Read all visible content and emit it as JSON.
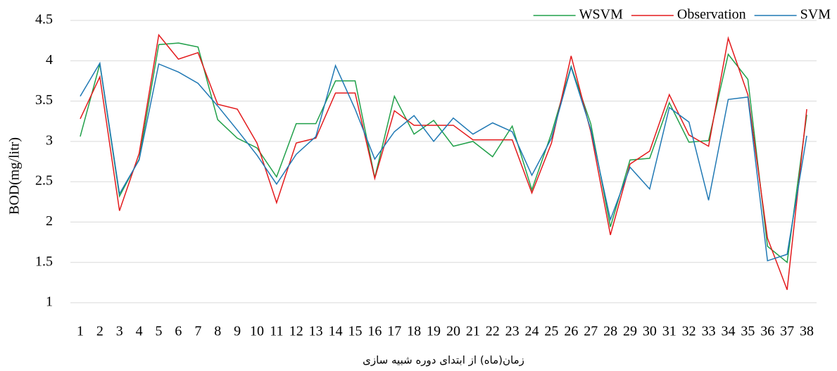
{
  "chart_data": {
    "type": "line",
    "y_label": "BOD(mg/litr)",
    "x_label": "زمان(ماه) از ابتدای دوره شبیه سازی",
    "categories": [
      "1",
      "2",
      "3",
      "4",
      "5",
      "6",
      "7",
      "8",
      "9",
      "10",
      "11",
      "12",
      "13",
      "14",
      "15",
      "16",
      "17",
      "18",
      "19",
      "20",
      "21",
      "22",
      "23",
      "24",
      "25",
      "26",
      "27",
      "28",
      "29",
      "30",
      "31",
      "32",
      "33",
      "34",
      "35",
      "36",
      "37",
      "38"
    ],
    "series": [
      {
        "name": "WSVM",
        "color": "#21a04a",
        "values": [
          3.06,
          3.96,
          2.32,
          2.78,
          4.2,
          4.22,
          4.17,
          3.27,
          3.04,
          2.92,
          2.56,
          3.22,
          3.22,
          3.75,
          3.75,
          2.55,
          3.56,
          3.09,
          3.26,
          2.94,
          3.0,
          2.81,
          3.19,
          2.4,
          3.1,
          3.93,
          3.22,
          1.94,
          2.77,
          2.79,
          3.48,
          2.99,
          3.01,
          4.08,
          3.77,
          1.7,
          1.5,
          3.33
        ]
      },
      {
        "name": "Observation",
        "color": "#e31a1c",
        "values": [
          3.28,
          3.8,
          2.14,
          2.85,
          4.32,
          4.02,
          4.1,
          3.46,
          3.4,
          2.98,
          2.24,
          2.98,
          3.04,
          3.6,
          3.6,
          2.54,
          3.38,
          3.2,
          3.2,
          3.2,
          3.02,
          3.02,
          3.02,
          2.36,
          2.98,
          4.06,
          3.12,
          1.84,
          2.72,
          2.88,
          3.58,
          3.08,
          2.94,
          4.28,
          3.58,
          1.8,
          1.16,
          3.4
        ]
      },
      {
        "name": "SVM",
        "color": "#1f78b4",
        "values": [
          3.56,
          3.97,
          2.35,
          2.77,
          3.96,
          3.86,
          3.72,
          3.44,
          3.14,
          2.83,
          2.47,
          2.84,
          3.06,
          3.94,
          3.4,
          2.78,
          3.12,
          3.32,
          3.0,
          3.29,
          3.09,
          3.23,
          3.12,
          2.58,
          3.04,
          3.92,
          3.15,
          2.03,
          2.68,
          2.41,
          3.42,
          3.24,
          2.27,
          3.52,
          3.55,
          1.52,
          1.6,
          3.07
        ]
      }
    ],
    "ylim": [
      1,
      4.5
    ],
    "yticks": [
      1,
      1.5,
      2,
      2.5,
      3,
      3.5,
      4,
      4.5
    ],
    "grid": true,
    "legend": "top-right"
  }
}
